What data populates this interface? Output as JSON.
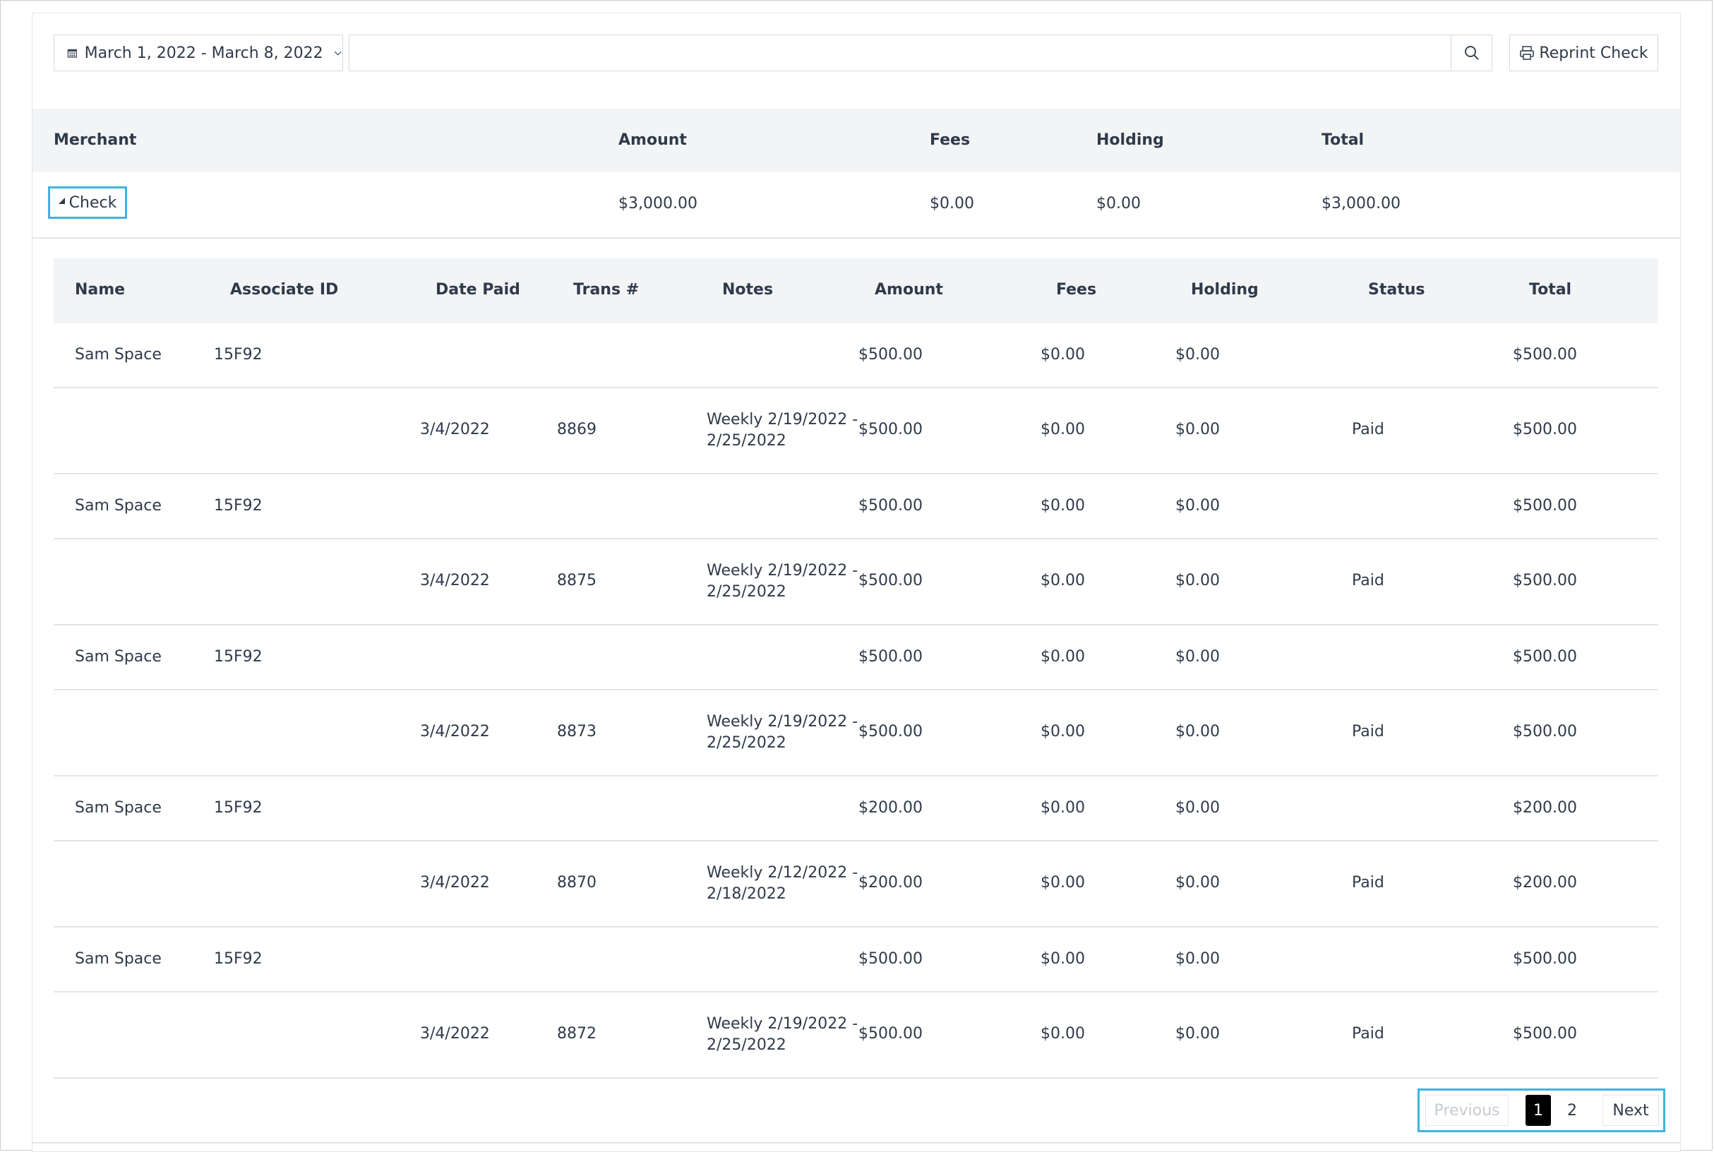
{
  "toolbar": {
    "date_range": "March 1, 2022 - March 8, 2022",
    "search_value": "",
    "reprint_label": "Reprint Check"
  },
  "merchant_table": {
    "headers": {
      "merchant": "Merchant",
      "amount": "Amount",
      "fees": "Fees",
      "holding": "Holding",
      "total": "Total"
    },
    "row": {
      "merchant": "Check",
      "amount": "$3,000.00",
      "fees": "$0.00",
      "holding": "$0.00",
      "total": "$3,000.00"
    }
  },
  "detail_table": {
    "headers": {
      "name": "Name",
      "associate_id": "Associate ID",
      "date_paid": "Date Paid",
      "trans": "Trans #",
      "notes": "Notes",
      "amount": "Amount",
      "fees": "Fees",
      "holding": "Holding",
      "status": "Status",
      "total": "Total"
    },
    "rows": [
      {
        "name": "Sam Space",
        "associate_id": "15F92",
        "amount": "$500.00",
        "fees": "$0.00",
        "holding": "$0.00",
        "total": "$500.00"
      },
      {
        "date_paid": "3/4/2022",
        "trans": "8869",
        "notes_line1": "Weekly 2/19/2022 -",
        "notes_line2": "2/25/2022",
        "amount": "$500.00",
        "fees": "$0.00",
        "holding": "$0.00",
        "status": "Paid",
        "total": "$500.00"
      },
      {
        "name": "Sam Space",
        "associate_id": "15F92",
        "amount": "$500.00",
        "fees": "$0.00",
        "holding": "$0.00",
        "total": "$500.00"
      },
      {
        "date_paid": "3/4/2022",
        "trans": "8875",
        "notes_line1": "Weekly 2/19/2022 -",
        "notes_line2": "2/25/2022",
        "amount": "$500.00",
        "fees": "$0.00",
        "holding": "$0.00",
        "status": "Paid",
        "total": "$500.00"
      },
      {
        "name": "Sam Space",
        "associate_id": "15F92",
        "amount": "$500.00",
        "fees": "$0.00",
        "holding": "$0.00",
        "total": "$500.00"
      },
      {
        "date_paid": "3/4/2022",
        "trans": "8873",
        "notes_line1": "Weekly 2/19/2022 -",
        "notes_line2": "2/25/2022",
        "amount": "$500.00",
        "fees": "$0.00",
        "holding": "$0.00",
        "status": "Paid",
        "total": "$500.00"
      },
      {
        "name": "Sam Space",
        "associate_id": "15F92",
        "amount": "$200.00",
        "fees": "$0.00",
        "holding": "$0.00",
        "total": "$200.00"
      },
      {
        "date_paid": "3/4/2022",
        "trans": "8870",
        "notes_line1": "Weekly 2/12/2022 -",
        "notes_line2": "2/18/2022",
        "amount": "$200.00",
        "fees": "$0.00",
        "holding": "$0.00",
        "status": "Paid",
        "total": "$200.00"
      },
      {
        "name": "Sam Space",
        "associate_id": "15F92",
        "amount": "$500.00",
        "fees": "$0.00",
        "holding": "$0.00",
        "total": "$500.00"
      },
      {
        "date_paid": "3/4/2022",
        "trans": "8872",
        "notes_line1": "Weekly 2/19/2022 -",
        "notes_line2": "2/25/2022",
        "amount": "$500.00",
        "fees": "$0.00",
        "holding": "$0.00",
        "status": "Paid",
        "total": "$500.00"
      }
    ]
  },
  "pagination": {
    "previous": "Previous",
    "pages": [
      "1",
      "2"
    ],
    "current": "1",
    "next": "Next"
  }
}
